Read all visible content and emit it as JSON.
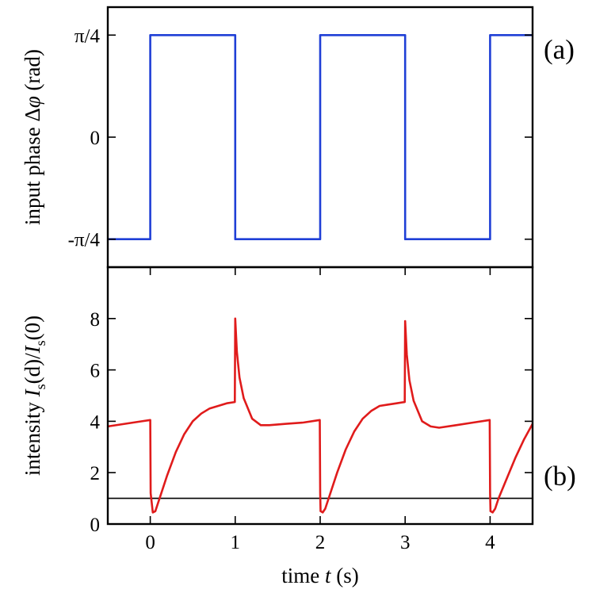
{
  "chart_data": [
    {
      "type": "line",
      "panel_label": "(a)",
      "ylabel_parts": [
        "input  phase  Δ",
        "φ",
        "  (rad)"
      ],
      "xlim": [
        -0.5,
        4.5
      ],
      "ylim": [
        -1.0,
        1.0
      ],
      "yticks": [
        {
          "value": 0.785,
          "label": "π/4"
        },
        {
          "value": 0.0,
          "label": "0"
        },
        {
          "value": -0.785,
          "label": "-π/4"
        }
      ],
      "series": [
        {
          "color": "#1f3fd6",
          "x": [
            -0.5,
            0,
            0,
            1,
            1,
            2,
            2,
            3,
            3,
            4,
            4,
            4.5
          ],
          "y": [
            -0.785,
            -0.785,
            0.785,
            0.785,
            -0.785,
            -0.785,
            0.785,
            0.785,
            -0.785,
            -0.785,
            0.785,
            0.785
          ]
        }
      ]
    },
    {
      "type": "line",
      "panel_label": "(b)",
      "ylabel_parts": [
        "intensity  ",
        "I",
        "s",
        "(d)/",
        "I",
        "s",
        "(0)"
      ],
      "xlabel_parts": [
        "time  ",
        "t",
        "  (s)"
      ],
      "xlim": [
        -0.5,
        4.5
      ],
      "ylim": [
        0,
        10
      ],
      "xticks": [
        {
          "value": 0,
          "label": "0"
        },
        {
          "value": 1,
          "label": "1"
        },
        {
          "value": 2,
          "label": "2"
        },
        {
          "value": 3,
          "label": "3"
        },
        {
          "value": 4,
          "label": "4"
        }
      ],
      "yticks": [
        {
          "value": 0,
          "label": "0"
        },
        {
          "value": 2,
          "label": "2"
        },
        {
          "value": 4,
          "label": "4"
        },
        {
          "value": 6,
          "label": "6"
        },
        {
          "value": 8,
          "label": "8"
        }
      ],
      "reference_line": {
        "y": 1.0,
        "color": "#000000"
      },
      "series": [
        {
          "color": "#e01b1b",
          "x": [
            -0.5,
            -0.3,
            -0.1,
            0.0,
            0.005,
            0.03,
            0.06,
            0.1,
            0.2,
            0.3,
            0.4,
            0.5,
            0.6,
            0.7,
            0.8,
            0.9,
            0.995,
            1.0,
            1.02,
            1.05,
            1.1,
            1.2,
            1.3,
            1.4,
            1.6,
            1.8,
            1.995,
            2.0,
            2.005,
            2.03,
            2.06,
            2.1,
            2.2,
            2.3,
            2.4,
            2.5,
            2.6,
            2.7,
            2.8,
            2.9,
            2.995,
            3.0,
            3.02,
            3.05,
            3.1,
            3.2,
            3.3,
            3.4,
            3.6,
            3.8,
            3.995,
            4.0,
            4.005,
            4.03,
            4.06,
            4.1,
            4.2,
            4.3,
            4.4,
            4.5
          ],
          "y": [
            3.8,
            3.9,
            4.0,
            4.05,
            1.2,
            0.45,
            0.5,
            0.9,
            1.9,
            2.8,
            3.5,
            4.0,
            4.3,
            4.5,
            4.6,
            4.7,
            4.75,
            8.0,
            6.7,
            5.7,
            4.9,
            4.1,
            3.85,
            3.85,
            3.9,
            3.95,
            4.05,
            1.2,
            0.5,
            0.45,
            0.6,
            1.0,
            2.0,
            2.9,
            3.6,
            4.1,
            4.4,
            4.6,
            4.65,
            4.7,
            4.75,
            7.9,
            6.6,
            5.6,
            4.8,
            4.0,
            3.8,
            3.75,
            3.85,
            3.95,
            4.05,
            1.2,
            0.5,
            0.45,
            0.6,
            1.0,
            1.8,
            2.6,
            3.3,
            3.9
          ]
        }
      ]
    }
  ]
}
